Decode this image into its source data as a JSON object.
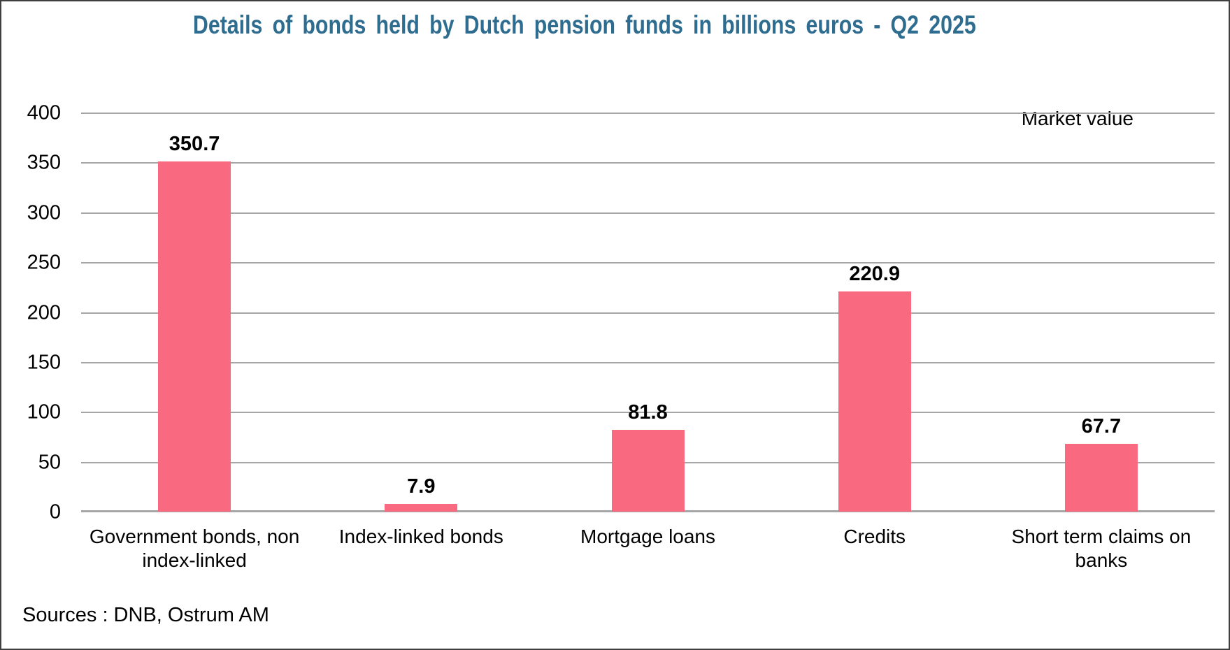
{
  "colors": {
    "title": "#2E6D8F",
    "bar": "#F96980",
    "gridline": "#A6A6A6",
    "axis_text": "#000000",
    "border": "#3F3F3F",
    "background": "#FFFFFF"
  },
  "chart_data": {
    "type": "bar",
    "title": "Details of bonds held by Dutch pension funds in billions euros - Q2 2025",
    "categories": [
      "Government bonds, non index-linked",
      "Index-linked bonds",
      "Mortgage loans",
      "Credits",
      "Short term claims on banks"
    ],
    "category_lines": [
      [
        "Government bonds, non",
        "index-linked"
      ],
      [
        "Index-linked bonds"
      ],
      [
        "Mortgage loans"
      ],
      [
        "Credits"
      ],
      [
        "Short term claims on",
        "banks"
      ]
    ],
    "values": [
      350.7,
      7.9,
      81.8,
      220.9,
      67.7
    ],
    "value_labels": [
      "350.7",
      "7.9",
      "81.8",
      "220.9",
      "67.7"
    ],
    "ylim": [
      0,
      400
    ],
    "yticks": [
      0,
      50,
      100,
      150,
      200,
      250,
      300,
      350,
      400
    ],
    "grid": true,
    "legend": false,
    "annotation": "Market value",
    "source_note": "Sources : DNB, Ostrum AM"
  }
}
